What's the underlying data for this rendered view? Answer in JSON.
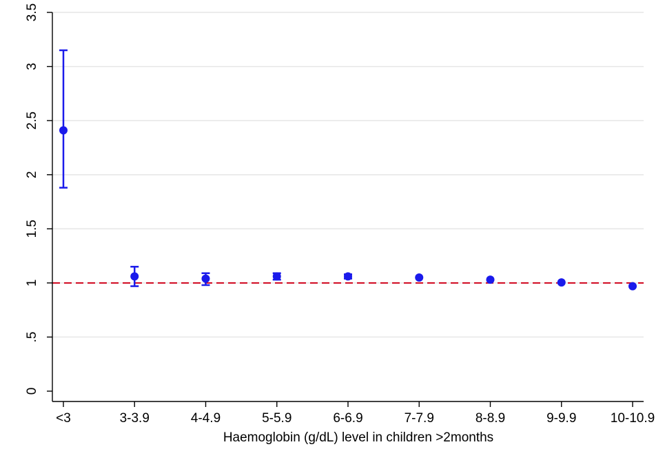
{
  "chart_data": {
    "type": "scatter",
    "xlabel": "Haemoglobin (g/dL) level in children >2months",
    "ylabel": "",
    "categories": [
      "<3",
      "3-3.9",
      "4-4.9",
      "5-5.9",
      "6-6.9",
      "7-7.9",
      "8-8.9",
      "9-9.9",
      "10-10.9"
    ],
    "y_ticks": [
      {
        "value": 0,
        "label": "0"
      },
      {
        "value": 0.5,
        "label": ".5"
      },
      {
        "value": 1,
        "label": "1"
      },
      {
        "value": 1.5,
        "label": "1.5"
      },
      {
        "value": 2,
        "label": "2"
      },
      {
        "value": 2.5,
        "label": "2.5"
      },
      {
        "value": 3,
        "label": "3"
      },
      {
        "value": 3.5,
        "label": "3.5"
      }
    ],
    "ylim": [
      0,
      3.5
    ],
    "series": [
      {
        "values": [
          2.41,
          1.06,
          1.04,
          1.06,
          1.06,
          1.05,
          1.03,
          1.005,
          0.97
        ],
        "lower": [
          1.88,
          0.97,
          0.98,
          1.03,
          1.04,
          1.04,
          1.02,
          0.995,
          0.96
        ],
        "upper": [
          3.15,
          1.15,
          1.09,
          1.09,
          1.08,
          1.06,
          1.04,
          1.015,
          0.98
        ],
        "color": "#1a1aeb"
      }
    ],
    "reference_line": {
      "value": 1,
      "color": "#d0021b",
      "style": "dashed"
    },
    "grid": true,
    "grid_color": "#e6e6e6",
    "legend": "none"
  }
}
